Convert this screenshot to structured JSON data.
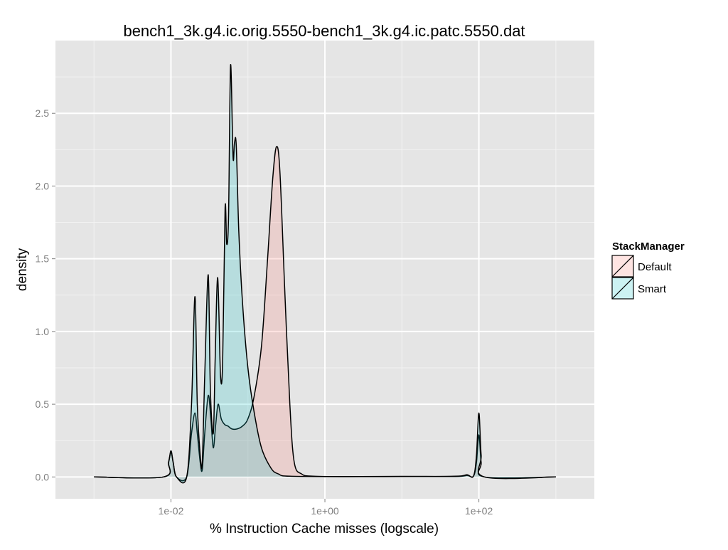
{
  "chart_data": {
    "type": "area",
    "title": "bench1_3k.g4.ic.orig.5550-bench1_3k.g4.ic.patc.5550.dat",
    "xlabel": "% Instruction Cache misses (logscale)",
    "ylabel": "density",
    "x_scale": "log10",
    "xlim": [
      0.000316,
      3162
    ],
    "ylim": [
      -0.15,
      3.0
    ],
    "x_ticks": [
      {
        "value": 0.01,
        "label": "1e-02"
      },
      {
        "value": 1,
        "label": "1e+00"
      },
      {
        "value": 100,
        "label": "1e+02"
      }
    ],
    "y_ticks": [
      {
        "value": 0.0,
        "label": "0.0"
      },
      {
        "value": 0.5,
        "label": "0.5"
      },
      {
        "value": 1.0,
        "label": "1.0"
      },
      {
        "value": 1.5,
        "label": "1.5"
      },
      {
        "value": 2.0,
        "label": "2.0"
      },
      {
        "value": 2.5,
        "label": "2.5"
      }
    ],
    "grid": true,
    "legend": {
      "title": "StackManager",
      "placement": "right"
    },
    "series": [
      {
        "name": "Default",
        "fill": "#f8766d",
        "points": [
          [
            0.001,
            0.0
          ],
          [
            0.008,
            0.0
          ],
          [
            0.0093,
            0.1
          ],
          [
            0.01,
            0.17
          ],
          [
            0.0107,
            0.1
          ],
          [
            0.0118,
            0.0
          ],
          [
            0.016,
            0.0
          ],
          [
            0.0185,
            0.3
          ],
          [
            0.0205,
            0.44
          ],
          [
            0.022,
            0.3
          ],
          [
            0.024,
            0.1
          ],
          [
            0.0255,
            0.05
          ],
          [
            0.0275,
            0.3
          ],
          [
            0.0305,
            0.56
          ],
          [
            0.033,
            0.4
          ],
          [
            0.0355,
            0.2
          ],
          [
            0.038,
            0.35
          ],
          [
            0.041,
            0.5
          ],
          [
            0.045,
            0.4
          ],
          [
            0.05,
            0.36
          ],
          [
            0.055,
            0.35
          ],
          [
            0.062,
            0.33
          ],
          [
            0.072,
            0.33
          ],
          [
            0.085,
            0.35
          ],
          [
            0.1,
            0.4
          ],
          [
            0.12,
            0.55
          ],
          [
            0.15,
            0.9
          ],
          [
            0.18,
            1.5
          ],
          [
            0.21,
            2.05
          ],
          [
            0.235,
            2.27
          ],
          [
            0.26,
            2.1
          ],
          [
            0.3,
            1.3
          ],
          [
            0.35,
            0.5
          ],
          [
            0.4,
            0.1
          ],
          [
            0.5,
            0.02
          ],
          [
            0.7,
            0.005
          ],
          [
            2,
            0.002
          ],
          [
            10,
            0.004
          ],
          [
            50,
            0.003
          ],
          [
            70,
            0.01
          ],
          [
            85,
            0.005
          ],
          [
            93,
            0.1
          ],
          [
            100,
            0.29
          ],
          [
            107,
            0.1
          ],
          [
            118,
            0.0
          ],
          [
            1000,
            0.0
          ]
        ]
      },
      {
        "name": "Smart",
        "fill": "#00bfc4",
        "points": [
          [
            0.001,
            0.0
          ],
          [
            0.008,
            0.0
          ],
          [
            0.0093,
            0.1
          ],
          [
            0.01,
            0.18
          ],
          [
            0.0107,
            0.1
          ],
          [
            0.0118,
            0.0
          ],
          [
            0.016,
            0.0
          ],
          [
            0.0185,
            0.5
          ],
          [
            0.0205,
            1.24
          ],
          [
            0.022,
            0.5
          ],
          [
            0.024,
            0.15
          ],
          [
            0.0255,
            0.1
          ],
          [
            0.0275,
            0.7
          ],
          [
            0.0305,
            1.39
          ],
          [
            0.0325,
            0.6
          ],
          [
            0.0355,
            0.3
          ],
          [
            0.0375,
            0.8
          ],
          [
            0.0405,
            1.37
          ],
          [
            0.044,
            0.7
          ],
          [
            0.047,
            0.8
          ],
          [
            0.0505,
            1.85
          ],
          [
            0.053,
            1.6
          ],
          [
            0.056,
            1.8
          ],
          [
            0.0595,
            2.83
          ],
          [
            0.064,
            2.2
          ],
          [
            0.067,
            2.3
          ],
          [
            0.0705,
            2.28
          ],
          [
            0.076,
            1.7
          ],
          [
            0.085,
            1.2
          ],
          [
            0.1,
            0.75
          ],
          [
            0.12,
            0.45
          ],
          [
            0.15,
            0.2
          ],
          [
            0.2,
            0.06
          ],
          [
            0.25,
            0.02
          ],
          [
            0.35,
            0.005
          ],
          [
            2,
            0.002
          ],
          [
            10,
            0.003
          ],
          [
            50,
            0.005
          ],
          [
            70,
            0.015
          ],
          [
            85,
            0.005
          ],
          [
            93,
            0.15
          ],
          [
            100,
            0.44
          ],
          [
            107,
            0.15
          ],
          [
            118,
            0.0
          ],
          [
            1000,
            0.0
          ]
        ]
      }
    ]
  }
}
